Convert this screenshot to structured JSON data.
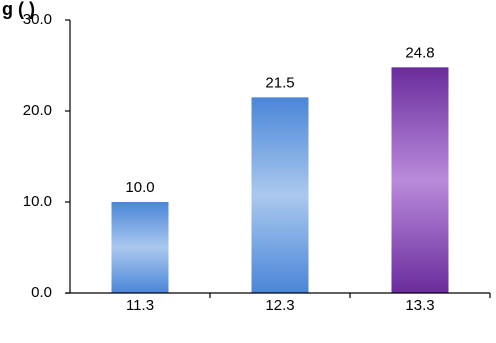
{
  "chart_data": {
    "type": "bar",
    "title": "g        (        )",
    "categories": [
      "11.3",
      "12.3",
      "13.3"
    ],
    "values": [
      10.0,
      21.5,
      24.8
    ],
    "data_labels": [
      "10.0",
      "21.5",
      "24.8"
    ],
    "ylim": [
      0,
      30
    ],
    "yticks": [
      "0.0",
      "10.0",
      "20.0",
      "30.0"
    ],
    "ytick_values": [
      0,
      10,
      20,
      30
    ],
    "grid": false,
    "bar_colors": [
      {
        "edge": "#4a86d8",
        "mid": "#aac8ee"
      },
      {
        "edge": "#4a86d8",
        "mid": "#aac8ee"
      },
      {
        "edge": "#6a2c9c",
        "mid": "#b98bdb"
      }
    ]
  }
}
